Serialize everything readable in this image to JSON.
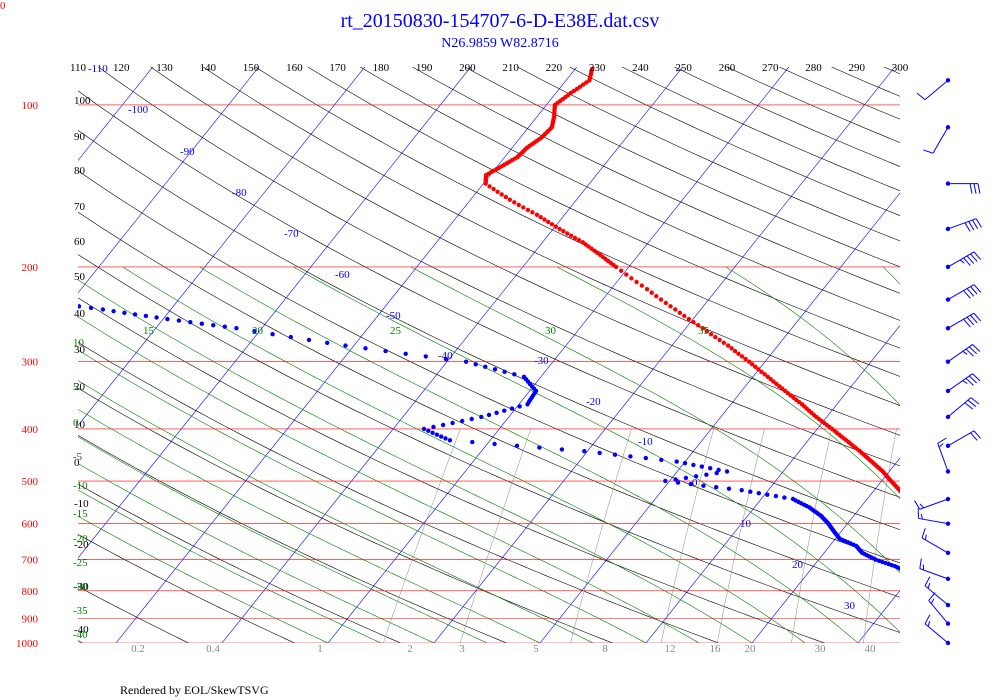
{
  "chart_data": {
    "type": "skew-t log-p",
    "title": "rt_20150830-154707-6-D-E38E.dat.csv",
    "subtitle": "N26.9859 W82.8716",
    "footer": "Rendered by EOL/SkewTSVG",
    "corner_label": "0",
    "pressure_levels": [
      100,
      200,
      300,
      400,
      500,
      600,
      700,
      800,
      900,
      1000
    ],
    "top_temperature_ticks": [
      110,
      120,
      130,
      140,
      150,
      160,
      170,
      180,
      190,
      200,
      210,
      220,
      230,
      240,
      250,
      260,
      270,
      280,
      290,
      300
    ],
    "left_labels": [
      "100",
      "90",
      "80",
      "70",
      "60",
      "50",
      "40",
      "30",
      "20",
      "10",
      "0",
      "-10",
      "-20",
      "-30",
      "-40"
    ],
    "isotherm_labels": [
      "-110",
      "-100",
      "-90",
      "-80",
      "-70",
      "-60",
      "-50",
      "-40",
      "-30",
      "-20",
      "-10",
      "0",
      "10",
      "20",
      "30"
    ],
    "moist_adiabat_top_labels": [
      "15",
      "20",
      "25",
      "30",
      "35"
    ],
    "moist_adiabat_left_labels": [
      "10",
      "5",
      "0",
      "-5",
      "-10",
      "-15",
      "-20",
      "-25",
      "-30",
      "-35",
      "-40"
    ],
    "mixing_ratio_labels": [
      "0.2",
      "0.4",
      "1",
      "2",
      "3",
      "5",
      "8",
      "12",
      "16",
      "20",
      "30",
      "40"
    ],
    "temperature_profile": [
      [
        1000,
        29.5
      ],
      [
        990,
        28.6
      ],
      [
        980,
        27.4
      ],
      [
        960,
        26.3
      ],
      [
        940,
        25.4
      ],
      [
        920,
        24.3
      ],
      [
        900,
        23.0
      ],
      [
        880,
        21.6
      ],
      [
        860,
        20.4
      ],
      [
        840,
        19.3
      ],
      [
        820,
        18.3
      ],
      [
        800,
        17.8
      ],
      [
        780,
        17.0
      ],
      [
        760,
        15.8
      ],
      [
        740,
        15.2
      ],
      [
        720,
        14.6
      ],
      [
        700,
        13.9
      ],
      [
        680,
        12.8
      ],
      [
        660,
        11.6
      ],
      [
        640,
        10.4
      ],
      [
        620,
        9.3
      ],
      [
        600,
        8.0
      ],
      [
        580,
        6.4
      ],
      [
        560,
        5.0
      ],
      [
        540,
        3.8
      ],
      [
        520,
        2.4
      ],
      [
        500,
        0.9
      ],
      [
        480,
        -0.6
      ],
      [
        460,
        -2.4
      ],
      [
        440,
        -4.3
      ],
      [
        420,
        -6.4
      ],
      [
        400,
        -8.6
      ],
      [
        380,
        -11.0
      ],
      [
        360,
        -13.3
      ],
      [
        340,
        -15.9
      ],
      [
        320,
        -18.6
      ],
      [
        300,
        -21.5
      ],
      [
        280,
        -24.7
      ],
      [
        260,
        -28.4
      ],
      [
        240,
        -32.4
      ],
      [
        220,
        -36.6
      ],
      [
        200,
        -41.2
      ],
      [
        190,
        -43.6
      ],
      [
        180,
        -46.2
      ],
      [
        170,
        -49.4
      ],
      [
        160,
        -52.6
      ],
      [
        150,
        -56.3
      ],
      [
        140,
        -59.8
      ],
      [
        135,
        -60.4
      ],
      [
        130,
        -59.6
      ],
      [
        125,
        -58.8
      ],
      [
        120,
        -58.6
      ],
      [
        115,
        -58.0
      ],
      [
        110,
        -57.8
      ],
      [
        105,
        -58.4
      ],
      [
        100,
        -59.2
      ],
      [
        95,
        -58.6
      ],
      [
        90,
        -57.8
      ],
      [
        85,
        -58.5
      ]
    ],
    "dewpoint_profile": [
      [
        1000,
        27.4
      ],
      [
        990,
        25.9
      ],
      [
        980,
        25.0
      ],
      [
        960,
        24.3
      ],
      [
        940,
        22.8
      ],
      [
        920,
        19.8
      ],
      [
        900,
        17.3
      ],
      [
        880,
        16.8
      ],
      [
        860,
        18.5
      ],
      [
        840,
        18.8
      ],
      [
        820,
        17.8
      ],
      [
        800,
        15.8
      ],
      [
        780,
        14.0
      ],
      [
        760,
        11.6
      ],
      [
        740,
        9.6
      ],
      [
        720,
        7.7
      ],
      [
        700,
        5.4
      ],
      [
        680,
        3.6
      ],
      [
        660,
        2.5
      ],
      [
        640,
        0.4
      ],
      [
        620,
        -0.7
      ],
      [
        600,
        -1.8
      ],
      [
        580,
        -3.1
      ],
      [
        560,
        -4.8
      ],
      [
        540,
        -7.0
      ],
      [
        520,
        -12.5
      ],
      [
        500,
        -20.4
      ],
      [
        480,
        -15.3
      ],
      [
        460,
        -20.8
      ],
      [
        440,
        -30.3
      ],
      [
        420,
        -43.8
      ],
      [
        400,
        -47.1
      ],
      [
        380,
        -42.6
      ],
      [
        360,
        -39.2
      ],
      [
        340,
        -39.4
      ],
      [
        320,
        -41.6
      ],
      [
        300,
        -48.2
      ],
      [
        280,
        -60.8
      ],
      [
        260,
        -72.4
      ],
      [
        250,
        -79.6
      ],
      [
        240,
        -86.4
      ],
      [
        230,
        -93.9
      ]
    ],
    "wind_barbs": [
      {
        "pressure": 90,
        "direction": 230,
        "speed": 10
      },
      {
        "pressure": 110,
        "direction": 210,
        "speed": 10
      },
      {
        "pressure": 140,
        "direction": 90,
        "speed": 30
      },
      {
        "pressure": 170,
        "direction": 70,
        "speed": 40
      },
      {
        "pressure": 200,
        "direction": 60,
        "speed": 45
      },
      {
        "pressure": 230,
        "direction": 60,
        "speed": 40
      },
      {
        "pressure": 260,
        "direction": 60,
        "speed": 40
      },
      {
        "pressure": 300,
        "direction": 55,
        "speed": 35
      },
      {
        "pressure": 340,
        "direction": 55,
        "speed": 35
      },
      {
        "pressure": 380,
        "direction": 50,
        "speed": 30
      },
      {
        "pressure": 430,
        "direction": 60,
        "speed": 20
      },
      {
        "pressure": 480,
        "direction": 340,
        "speed": 15
      },
      {
        "pressure": 540,
        "direction": 250,
        "speed": 15
      },
      {
        "pressure": 600,
        "direction": 280,
        "speed": 15
      },
      {
        "pressure": 680,
        "direction": 300,
        "speed": 15
      },
      {
        "pressure": 760,
        "direction": 290,
        "speed": 15
      },
      {
        "pressure": 850,
        "direction": 310,
        "speed": 15
      },
      {
        "pressure": 920,
        "direction": 320,
        "speed": 15
      },
      {
        "pressure": 1000,
        "direction": 310,
        "speed": 15
      }
    ],
    "colors": {
      "temperature": "#ff0000",
      "dewpoint": "#0000ff",
      "isobar": "#ff0000",
      "isotherm": "#0000ff",
      "dry_adiabat": "#000000",
      "moist_adiabat": "#008000",
      "mixing_ratio": "#888888",
      "text": "#0000ff"
    }
  }
}
